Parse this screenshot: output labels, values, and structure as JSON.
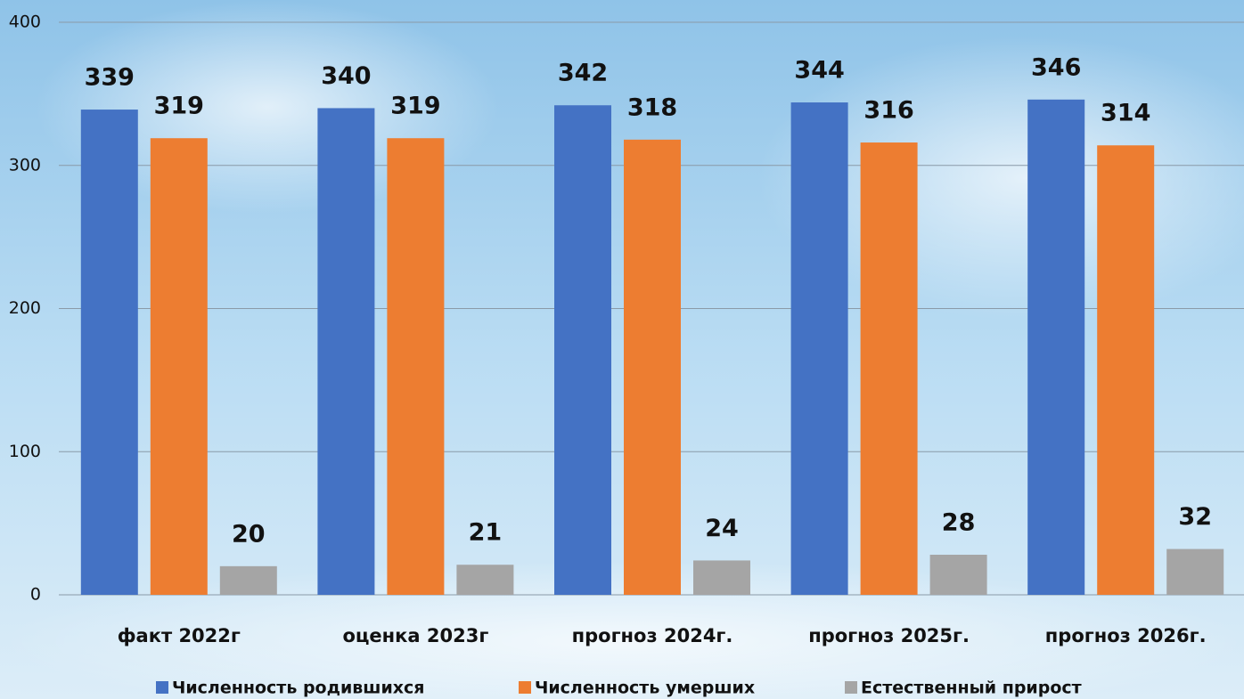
{
  "chart_data": {
    "type": "bar",
    "categories": [
      "факт 2022г",
      "оценка 2023г",
      "прогноз 2024г.",
      "прогноз 2025г.",
      "прогноз 2026г."
    ],
    "series": [
      {
        "name": "Численность родившихся",
        "color": "#4472c4",
        "values": [
          339,
          340,
          342,
          344,
          346
        ]
      },
      {
        "name": "Численность умерших",
        "color": "#ed7d31",
        "values": [
          319,
          319,
          318,
          316,
          314
        ]
      },
      {
        "name": "Естественный прирост",
        "color": "#a5a5a5",
        "values": [
          20,
          21,
          24,
          28,
          32
        ]
      }
    ],
    "ylim": [
      0,
      400
    ],
    "yticks": [
      0,
      100,
      200,
      300,
      400
    ],
    "grid": true,
    "legend": "bottom"
  }
}
